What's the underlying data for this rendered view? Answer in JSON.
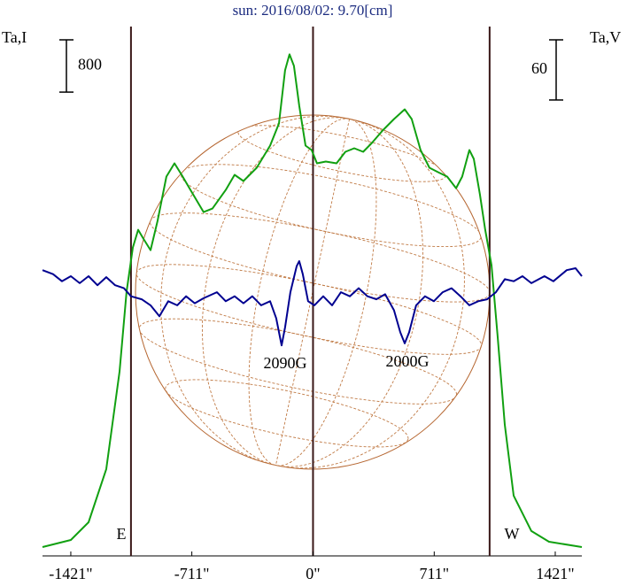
{
  "chart_data": {
    "type": "line",
    "title": "sun: 2016/08/02: 9.70[cm]",
    "ylabel": "Ta,I",
    "y2label": "Ta,V",
    "xlim": [
      -1587,
      1577
    ],
    "ylim": [
      0,
      8100
    ],
    "y2lim": [
      -263,
      265
    ],
    "xticks": [
      {
        "value": -1421,
        "label": "-1421\""
      },
      {
        "value": -711,
        "label": "-711\""
      },
      {
        "value": 0,
        "label": "0\""
      },
      {
        "value": 711,
        "label": "711\""
      },
      {
        "value": 1421,
        "label": "1421\""
      }
    ],
    "vlines": [
      -1068,
      0,
      1036
    ],
    "scale_bars": [
      {
        "label": "800",
        "value": 800
      },
      {
        "label": "60",
        "value": 60,
        "axis": "y2"
      }
    ],
    "annotations": [
      "E",
      "W",
      "2090G",
      "2000G"
    ],
    "series": [
      {
        "color": "#11a011",
        "x": [
          -1587,
          -1421,
          -1317,
          -1213,
          -1135,
          -1094,
          -1057,
          -1026,
          -995,
          -953,
          -912,
          -860,
          -813,
          -771,
          -719,
          -642,
          -590,
          -512,
          -460,
          -408,
          -330,
          -252,
          -200,
          -164,
          -138,
          -112,
          -81,
          -44,
          -8,
          23,
          75,
          138,
          190,
          242,
          294,
          345,
          408,
          475,
          538,
          579,
          631,
          683,
          735,
          787,
          839,
          875,
          917,
          943,
          979,
          1010,
          1047,
          1083,
          1125,
          1177,
          1281,
          1384,
          1577
        ],
        "values": [
          136,
          244,
          515,
          1329,
          2820,
          4041,
          4719,
          4990,
          4854,
          4678,
          5126,
          5804,
          6007,
          5831,
          5600,
          5261,
          5315,
          5600,
          5831,
          5736,
          5939,
          6278,
          6617,
          7431,
          7675,
          7499,
          6888,
          6278,
          6210,
          6007,
          6034,
          6007,
          6183,
          6238,
          6183,
          6319,
          6509,
          6685,
          6834,
          6685,
          6210,
          5939,
          5871,
          5804,
          5627,
          5804,
          6210,
          6075,
          5532,
          4990,
          4448,
          3363,
          2007,
          922,
          380,
          217,
          136
        ]
      },
      {
        "color": "#000090",
        "axis": "y2",
        "x": [
          -1587,
          -1525,
          -1473,
          -1421,
          -1369,
          -1317,
          -1265,
          -1213,
          -1161,
          -1109,
          -1068,
          -1005,
          -953,
          -901,
          -849,
          -797,
          -745,
          -694,
          -642,
          -564,
          -512,
          -460,
          -408,
          -356,
          -304,
          -252,
          -216,
          -184,
          -164,
          -133,
          -96,
          -81,
          -60,
          -29,
          8,
          60,
          112,
          164,
          216,
          268,
          319,
          371,
          423,
          475,
          512,
          538,
          564,
          605,
          657,
          709,
          761,
          813,
          865,
          917,
          969,
          1021,
          1073,
          1125,
          1177,
          1229,
          1281,
          1358,
          1410,
          1488,
          1540,
          1577
        ],
        "values": [
          22,
          18,
          11,
          16,
          9,
          16,
          7,
          15,
          7,
          4,
          -4,
          -7,
          -13,
          -24,
          -9,
          -13,
          -4,
          -11,
          -6,
          0,
          -9,
          -4,
          -11,
          -4,
          -13,
          -9,
          -26,
          -53,
          -35,
          0,
          26,
          31,
          18,
          -9,
          -13,
          -4,
          -13,
          0,
          -4,
          4,
          -4,
          -7,
          -2,
          -18,
          -40,
          -51,
          -40,
          -13,
          -4,
          -9,
          0,
          4,
          -4,
          -13,
          -9,
          -7,
          0,
          13,
          11,
          16,
          9,
          16,
          11,
          22,
          24,
          16
        ]
      }
    ]
  }
}
